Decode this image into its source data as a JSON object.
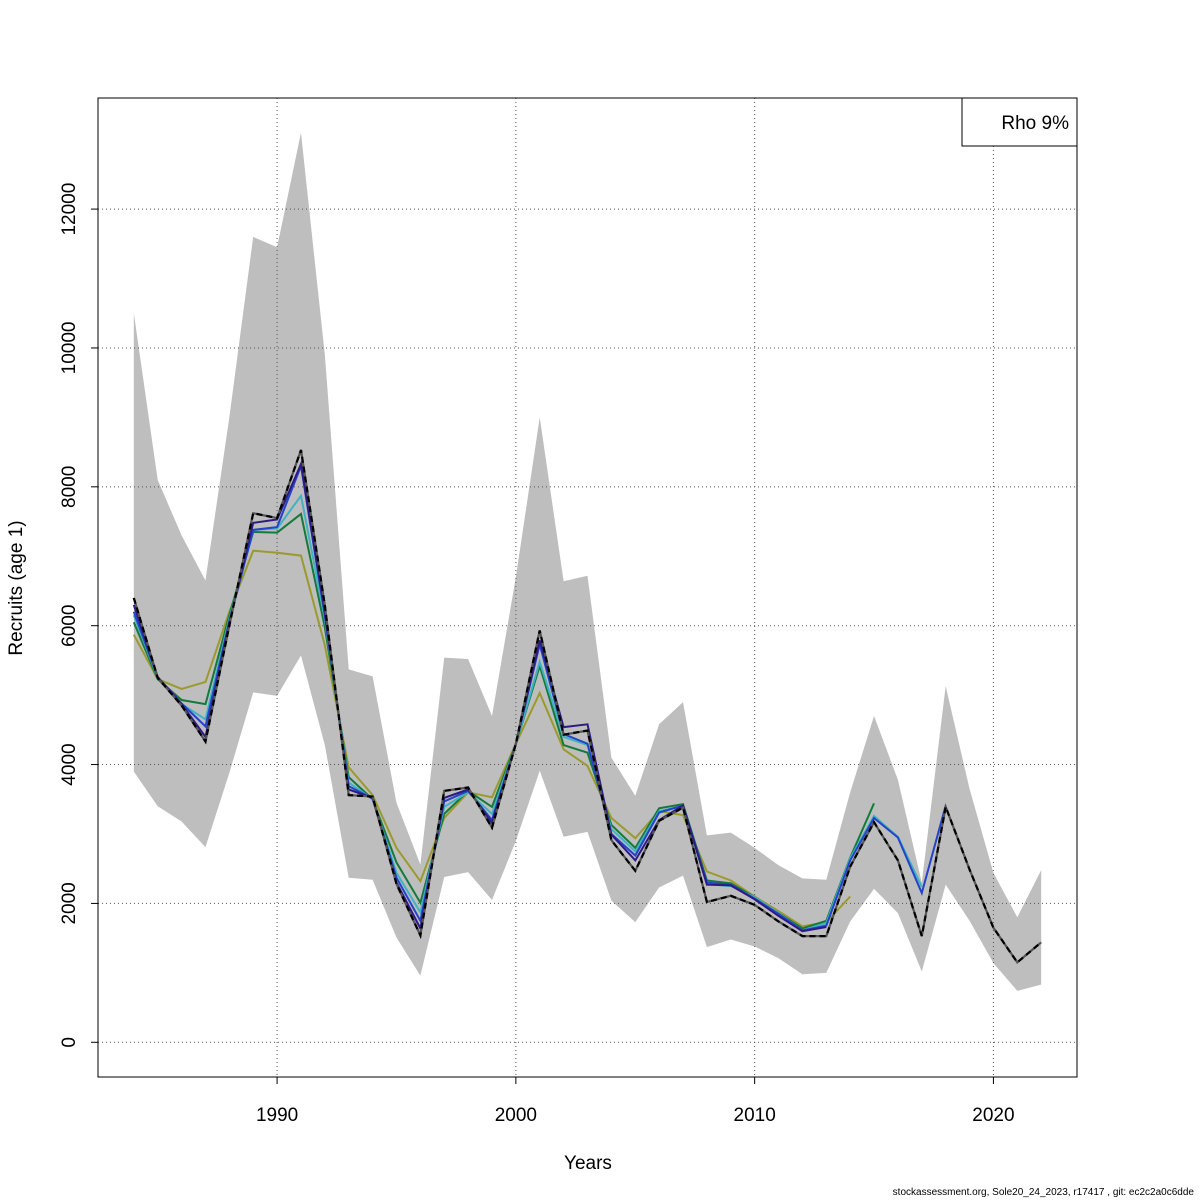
{
  "chart_data": {
    "type": "line",
    "ylabel": "Recruits (age 1)",
    "xlabel": "Years",
    "x_ticks": [
      1990,
      2000,
      2010,
      2020
    ],
    "y_ticks": [
      0,
      2000,
      4000,
      6000,
      8000,
      10000,
      12000
    ],
    "xlim": [
      1982.5,
      2023.5
    ],
    "ylim": [
      -500,
      13600
    ],
    "grid": true,
    "legend": {
      "position": "top-right",
      "text": "Rho 9%"
    },
    "confidence_band": {
      "color": "#bebebe",
      "x": [
        1984,
        1985,
        1986,
        1987,
        1988,
        1989,
        1990,
        1991,
        1992,
        1993,
        1994,
        1995,
        1996,
        1997,
        1998,
        1999,
        2000,
        2001,
        2002,
        2003,
        2004,
        2005,
        2006,
        2007,
        2008,
        2009,
        2010,
        2011,
        2012,
        2013,
        2014,
        2015,
        2016,
        2017,
        2018,
        2019,
        2020,
        2021,
        2022
      ],
      "upper": [
        10500,
        8100,
        7300,
        6650,
        9000,
        11600,
        11450,
        13100,
        9900,
        5370,
        5270,
        3450,
        2560,
        5540,
        5520,
        4700,
        6700,
        9000,
        6640,
        6720,
        4100,
        3550,
        4580,
        4900,
        2980,
        3020,
        2800,
        2550,
        2360,
        2340,
        3600,
        4700,
        3780,
        2300,
        5130,
        3650,
        2440,
        1800,
        2480
      ],
      "lower": [
        3900,
        3400,
        3180,
        2810,
        3880,
        5040,
        4990,
        5570,
        4280,
        2370,
        2340,
        1510,
        960,
        2380,
        2450,
        2050,
        2900,
        3910,
        2960,
        3030,
        2040,
        1730,
        2230,
        2400,
        1370,
        1480,
        1380,
        1210,
        980,
        1000,
        1740,
        2210,
        1860,
        1020,
        2270,
        1750,
        1140,
        740,
        830
      ]
    },
    "series": [
      {
        "color": "#000000",
        "dashed": true,
        "x": [
          1984,
          1985,
          1986,
          1987,
          1988,
          1989,
          1990,
          1991,
          1992,
          1993,
          1994,
          1995,
          1996,
          1997,
          1998,
          1999,
          2000,
          2001,
          2002,
          2003,
          2004,
          2005,
          2006,
          2007,
          2008,
          2009,
          2010,
          2011,
          2012,
          2013,
          2014,
          2015,
          2016,
          2017,
          2018,
          2019,
          2020,
          2021,
          2022
        ],
        "values": [
          6400,
          5250,
          4850,
          4330,
          6000,
          7620,
          7550,
          8530,
          6300,
          3560,
          3540,
          2280,
          1540,
          3620,
          3670,
          3090,
          4300,
          5930,
          4430,
          4490,
          2910,
          2470,
          3190,
          3380,
          2020,
          2110,
          1980,
          1740,
          1530,
          1530,
          2530,
          3170,
          2620,
          1530,
          3390,
          2490,
          1650,
          1150,
          1440
        ]
      },
      {
        "color": "#2e1a85",
        "x": [
          1984,
          1985,
          1986,
          1987,
          1988,
          1989,
          1990,
          1991,
          1992,
          1993,
          1994,
          1995,
          1996,
          1997,
          1998,
          1999,
          2000,
          2001,
          2002,
          2003,
          2004,
          2005,
          2006,
          2007,
          2008,
          2009,
          2010,
          2011,
          2012,
          2013
        ],
        "values": [
          6300,
          5260,
          4870,
          4400,
          6050,
          7480,
          7530,
          8330,
          6200,
          3640,
          3520,
          2300,
          1640,
          3520,
          3640,
          3160,
          4300,
          5790,
          4540,
          4580,
          2990,
          2620,
          3200,
          3410,
          2270,
          2260,
          2060,
          1820,
          1600,
          1660
        ]
      },
      {
        "color": "#2343c9",
        "x": [
          1984,
          1985,
          1986,
          1987,
          1988,
          1989,
          1990,
          1991,
          1992,
          1993,
          1994,
          1995,
          1996,
          1997,
          1998,
          1999,
          2000,
          2001,
          2002,
          2003,
          2004,
          2005,
          2006,
          2007,
          2008,
          2009,
          2010,
          2011,
          2012,
          2013,
          2014,
          2015,
          2016,
          2017,
          2018
        ],
        "values": [
          6200,
          5260,
          4880,
          4550,
          6060,
          7380,
          7420,
          8300,
          6150,
          3690,
          3510,
          2370,
          1750,
          3470,
          3620,
          3200,
          4300,
          5730,
          4440,
          4300,
          3000,
          2690,
          3310,
          3410,
          2300,
          2270,
          2070,
          1850,
          1610,
          1680,
          2620,
          3230,
          2950,
          2150,
          3410
        ]
      },
      {
        "color": "#3fb3c2",
        "x": [
          1984,
          1985,
          1986,
          1987,
          1988,
          1989,
          1990,
          1991,
          1992,
          1993,
          1994,
          1995,
          1996,
          1997,
          1998,
          1999,
          2000,
          2001,
          2002,
          2003,
          2004,
          2005,
          2006,
          2007,
          2008,
          2009,
          2010,
          2011,
          2012,
          2013,
          2014,
          2015,
          2016,
          2017
        ],
        "values": [
          6150,
          5250,
          4870,
          4650,
          6100,
          7380,
          7400,
          7870,
          6100,
          3740,
          3500,
          2440,
          1870,
          3390,
          3600,
          3290,
          4300,
          5480,
          4400,
          4280,
          3070,
          2750,
          3330,
          3400,
          2280,
          2250,
          2090,
          1860,
          1610,
          1720,
          2650,
          3260,
          2960,
          2240
        ]
      },
      {
        "color": "#137a3a",
        "x": [
          1984,
          1985,
          1986,
          1987,
          1988,
          1989,
          1990,
          1991,
          1992,
          1993,
          1994,
          1995,
          1996,
          1997,
          1998,
          1999,
          2000,
          2001,
          2002,
          2003,
          2004,
          2005,
          2006,
          2007,
          2008,
          2009,
          2010,
          2011,
          2012,
          2013,
          2014,
          2015
        ],
        "values": [
          6050,
          5230,
          4930,
          4870,
          6150,
          7350,
          7340,
          7610,
          5980,
          3820,
          3500,
          2590,
          2010,
          3290,
          3620,
          3390,
          4300,
          5420,
          4280,
          4170,
          3130,
          2800,
          3370,
          3430,
          2330,
          2290,
          2090,
          1860,
          1640,
          1750,
          2660,
          3440
        ]
      },
      {
        "color": "#9a9a2e",
        "x": [
          1984,
          1985,
          1986,
          1987,
          1988,
          1989,
          1990,
          1991,
          1992,
          1993,
          1994,
          1995,
          1996,
          1997,
          1998,
          1999,
          2000,
          2001,
          2002,
          2003,
          2004,
          2005,
          2006,
          2007,
          2008,
          2009,
          2010,
          2011,
          2012,
          2013,
          2014
        ],
        "values": [
          5870,
          5230,
          5090,
          5190,
          6200,
          7080,
          7050,
          7010,
          5720,
          3960,
          3560,
          2800,
          2320,
          3230,
          3600,
          3530,
          4300,
          5030,
          4220,
          3980,
          3230,
          2940,
          3330,
          3270,
          2460,
          2330,
          2100,
          1890,
          1670,
          1730,
          2100
        ]
      }
    ]
  },
  "footer": "stockassessment.org, Sole20_24_2023, r17417 , git: ec2c2a0c6dde"
}
